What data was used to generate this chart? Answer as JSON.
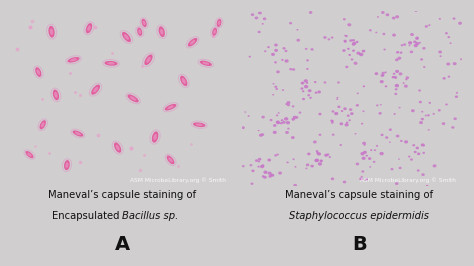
{
  "bg_color": "#d0cece",
  "fig_width": 4.74,
  "fig_height": 2.66,
  "left_image": {
    "bg_color": "#7a5a9a",
    "bacteria_color": "#e060a0",
    "capsule_color": "#e8a0c8",
    "border_color": "#111111",
    "label": "A",
    "title_line1": "Maneval’s capsule staining of",
    "title_line2_normal": "Encapsulated ",
    "title_line2_italic": "Bacillus sp.",
    "watermark": "ASM MicrobeLibrary.org © Smith"
  },
  "right_image": {
    "bg_color": "#1e1228",
    "bacteria_color": "#c878c8",
    "border_color": "#111111",
    "label": "B",
    "title_line1": "Maneval’s capsule staining of",
    "title_line2_italic": "Staphylococcus epidermidis",
    "watermark": "ASM MicrobeLibrary.org © Smith"
  },
  "text_color": "#111111",
  "label_fontsize": 14,
  "title_fontsize": 7.2,
  "watermark_fontsize": 4.2
}
